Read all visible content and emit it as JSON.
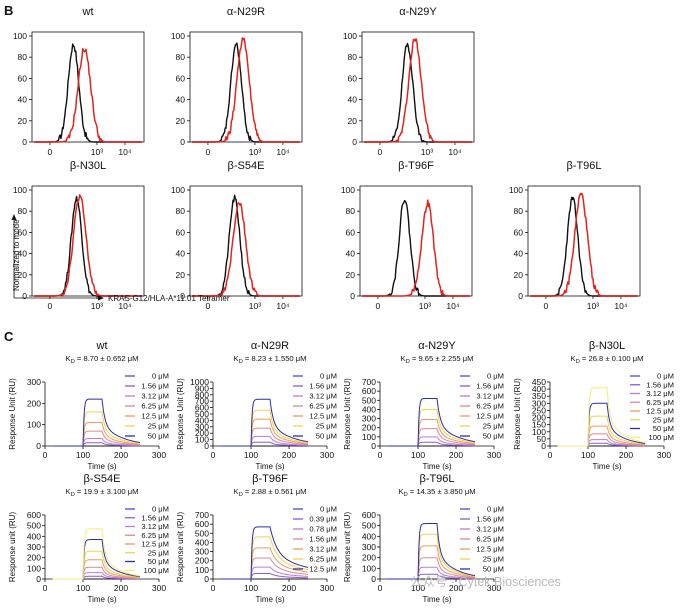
{
  "panel_labels": {
    "b": "B",
    "c": "C"
  },
  "flow": {
    "y_axis_label": "Normalized to mode",
    "x_axis_label": "KRAS-G12/HLA-A*11:01 Tetramer",
    "y_ticks": [
      "0",
      "20",
      "40",
      "60",
      "80",
      "100"
    ],
    "x_ticks": [
      "0",
      "10³",
      "10⁴"
    ]
  },
  "spr": {
    "x_axis_label": "Time (s)",
    "x_ticks": [
      "0",
      "100",
      "200",
      "300"
    ]
  },
  "watermark": "公众号 · Cytek Biosciences",
  "colors": {
    "histogram_black": "#111111",
    "histogram_red": "#e3231f",
    "concentrations_8": [
      "#4a4cd9",
      "#8a5cd6",
      "#c07ad8",
      "#d98b8f",
      "#ec9b5d",
      "#ecd54a",
      "#2a2fa6",
      "#f2ee7a"
    ],
    "concentrations_9": [
      "#4a4cd9",
      "#4f8fe0",
      "#8a5cd6",
      "#c07ad8",
      "#d98b8f",
      "#ec9b5d",
      "#ecd54a",
      "#2a2fa6",
      "#f2ee7a"
    ]
  },
  "chart_data": [
    {
      "panel": "B",
      "type": "histogram",
      "title": "wt",
      "black_peak_log": 2.25,
      "red_peak_log": 2.6,
      "red_peak_pct": 88,
      "ylim": [
        0,
        100
      ]
    },
    {
      "panel": "B",
      "type": "histogram",
      "title": "α-N29R",
      "black_peak_log": 2.4,
      "red_peak_log": 2.62,
      "red_peak_pct": 96,
      "ylim": [
        0,
        100
      ]
    },
    {
      "panel": "B",
      "type": "histogram",
      "title": "α-N29Y",
      "black_peak_log": 2.38,
      "red_peak_log": 2.62,
      "red_peak_pct": 97,
      "ylim": [
        0,
        100
      ]
    },
    {
      "panel": "B",
      "type": "histogram",
      "title": "β-N30L",
      "black_peak_log": 2.35,
      "red_peak_log": 2.45,
      "red_peak_pct": 94,
      "ylim": [
        0,
        100
      ]
    },
    {
      "panel": "B",
      "type": "histogram",
      "title": "β-S54E",
      "black_peak_log": 2.35,
      "red_peak_log": 2.5,
      "red_peak_pct": 88,
      "ylim": [
        0,
        100
      ]
    },
    {
      "panel": "B",
      "type": "histogram",
      "title": "β-T96F",
      "black_peak_log": 2.35,
      "red_peak_log": 3.1,
      "red_peak_pct": 88,
      "ylim": [
        0,
        100
      ]
    },
    {
      "panel": "B",
      "type": "histogram",
      "title": "β-T96L",
      "black_peak_log": 2.35,
      "red_peak_log": 2.62,
      "red_peak_pct": 96,
      "ylim": [
        0,
        100
      ]
    },
    {
      "panel": "C",
      "type": "line",
      "title": "wt",
      "kd": "K_D = 8.70 ± 0.652 μM",
      "ylabel": "Response Unit (RU)",
      "xlabel": "Time (s)",
      "xlim": [
        0,
        300
      ],
      "ylim": [
        0,
        300
      ],
      "y_ticks": [
        0,
        100,
        200,
        300
      ],
      "injection": [
        100,
        150
      ],
      "concentrations": [
        "0 μM",
        "1.56 μM",
        "3.12 μM",
        "6.25 μM",
        "12.5 μM",
        "25 μM",
        "50 μM"
      ],
      "plateaus": [
        0,
        15,
        35,
        70,
        110,
        160,
        220
      ],
      "dissociation_rate": 0.045
    },
    {
      "panel": "C",
      "type": "line",
      "title": "α-N29R",
      "kd": "K_D = 8.23 ± 1.550 μM",
      "ylabel": "Response Unit (RU)",
      "xlabel": "Time (s)",
      "xlim": [
        0,
        300
      ],
      "ylim": [
        0,
        1000
      ],
      "y_ticks": [
        0,
        100,
        200,
        300,
        400,
        500,
        600,
        700,
        800,
        900,
        1000
      ],
      "injection": [
        100,
        150
      ],
      "concentrations": [
        "0 μM",
        "1.56 μM",
        "3.12 μM",
        "6.25 μM",
        "12.5 μM",
        "25 μM",
        "50 μM"
      ],
      "plateaus": [
        0,
        60,
        150,
        280,
        420,
        560,
        730
      ],
      "dissociation_rate": 0.04
    },
    {
      "panel": "C",
      "type": "line",
      "title": "α-N29Y",
      "kd": "K_D = 9.65 ± 2.255 μM",
      "ylabel": "Response Unit (RU)",
      "xlabel": "Time (s)",
      "xlim": [
        0,
        300
      ],
      "ylim": [
        0,
        700
      ],
      "y_ticks": [
        0,
        100,
        200,
        300,
        400,
        500,
        600,
        700
      ],
      "injection": [
        100,
        150
      ],
      "concentrations": [
        "0 μM",
        "1.56 μM",
        "3.12 μM",
        "6.25 μM",
        "12.5 μM",
        "25 μM",
        "50 μM"
      ],
      "plateaus": [
        0,
        40,
        100,
        190,
        290,
        400,
        520
      ],
      "dissociation_rate": 0.04
    },
    {
      "panel": "C",
      "type": "line",
      "title": "β-N30L",
      "kd": "K_D = 26.8 ± 0.100 μM",
      "ylabel": "Response Unit (RU)",
      "xlabel": "Time (s)",
      "xlim": [
        0,
        300
      ],
      "ylim": [
        0,
        450
      ],
      "y_ticks": [
        0,
        50,
        100,
        150,
        200,
        250,
        300,
        350,
        400,
        450
      ],
      "injection": [
        100,
        150
      ],
      "concentrations": [
        "0 μM",
        "1.56 μM",
        "3.12 μM",
        "6.25 μM",
        "12.5 μM",
        "25 μM",
        "50 μM",
        "100 μM"
      ],
      "plateaus": [
        0,
        20,
        45,
        85,
        140,
        210,
        300,
        410
      ],
      "dissociation_rate": 0.05
    },
    {
      "panel": "C",
      "type": "line",
      "title": "β-S54E",
      "kd": "K_D = 19.9 ± 3.100 μM",
      "ylabel": "Response unit (RU)",
      "xlabel": "Time (s)",
      "xlim": [
        0,
        300
      ],
      "ylim": [
        0,
        600
      ],
      "y_ticks": [
        0,
        100,
        200,
        300,
        400,
        500,
        600
      ],
      "injection": [
        100,
        150
      ],
      "concentrations": [
        "0 μM",
        "1.56 μM",
        "3.12 μM",
        "6.25 μM",
        "12.5 μM",
        "25 μM",
        "50 μM",
        "100 μM"
      ],
      "plateaus": [
        0,
        25,
        60,
        110,
        180,
        260,
        370,
        470
      ],
      "dissociation_rate": 0.05
    },
    {
      "panel": "C",
      "type": "line",
      "title": "β-T96F",
      "kd": "K_D = 2.88 ± 0.561 μM",
      "ylabel": "Response unit (RU)",
      "xlabel": "Time (s)",
      "xlim": [
        0,
        300
      ],
      "ylim": [
        0,
        700
      ],
      "y_ticks": [
        0,
        100,
        200,
        300,
        400,
        500,
        600,
        700
      ],
      "injection": [
        100,
        150
      ],
      "concentrations": [
        "0 μM",
        "0.39 μM",
        "0.78 μM",
        "1.56 μM",
        "3.12 μM",
        "6.25 μM",
        "12.5 μM"
      ],
      "plateaus": [
        0,
        60,
        130,
        230,
        340,
        460,
        570
      ],
      "dissociation_rate": 0.018
    },
    {
      "panel": "C",
      "type": "line",
      "title": "β-T96L",
      "kd": "K_D = 14.35 ± 3.850 μM",
      "ylabel": "Response unit (RU)",
      "xlabel": "Time (s)",
      "xlim": [
        0,
        300
      ],
      "ylim": [
        0,
        600
      ],
      "y_ticks": [
        0,
        100,
        200,
        300,
        400,
        500,
        600
      ],
      "injection": [
        100,
        150
      ],
      "concentrations": [
        "0 μM",
        "1.56 μM",
        "3.12 μM",
        "6.25 μM",
        "12.5 μM",
        "25 μM",
        "50 μM"
      ],
      "plateaus": [
        0,
        45,
        110,
        200,
        310,
        420,
        520
      ],
      "dissociation_rate": 0.05
    }
  ]
}
